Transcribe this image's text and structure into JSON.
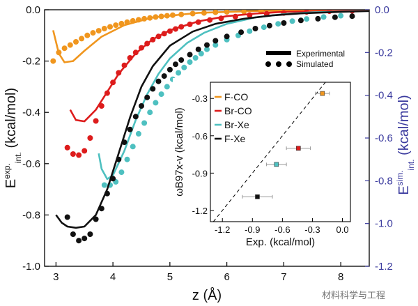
{
  "chart_data": [
    {
      "type": "line",
      "xlabel": "z (Å)",
      "ylabel_left": {
        "main": "E",
        "sup": "exp.",
        "sub": "int.",
        "unit": " (kcal/mol)"
      },
      "ylabel_right": {
        "main": "E",
        "sup": "sim.",
        "sub": "int.",
        "unit": " (kcal/mol)"
      },
      "xlim": [
        2.8,
        8.5
      ],
      "ylim_left": [
        -1.0,
        0.0
      ],
      "ylim_right": [
        -1.2,
        0.0
      ],
      "x_ticks": [
        "3",
        "4",
        "5",
        "6",
        "7",
        "8"
      ],
      "y_ticks_left": [
        "-1.0",
        "-0.8",
        "-0.6",
        "-0.4",
        "-0.2",
        "0.0"
      ],
      "y_ticks_right": [
        "-1.2",
        "-1.0",
        "-0.8",
        "-0.6",
        "-0.4",
        "-0.2",
        "0.0"
      ],
      "legend": {
        "line_label": "Experimental",
        "dots_label": "Simulated",
        "position": "top-right"
      },
      "series": [
        {
          "name": "F-CO",
          "color": "#f0961e",
          "experimental": {
            "x": [
              2.95,
              3.05,
              3.15,
              3.3,
              3.5,
              3.8,
              4.2,
              4.7,
              5.5,
              6.5,
              7.5,
              8.5
            ],
            "y": [
              -0.08,
              -0.17,
              -0.205,
              -0.2,
              -0.16,
              -0.105,
              -0.06,
              -0.03,
              -0.012,
              -0.005,
              -0.002,
              -0.001
            ]
          },
          "simulated": {
            "x": [
              2.95,
              3.05,
              3.15,
              3.25,
              3.35,
              3.45,
              3.55,
              3.65,
              3.75,
              3.85,
              3.95,
              4.05,
              4.15,
              4.25,
              4.35,
              4.45,
              4.55,
              4.65,
              4.75,
              4.85,
              4.95,
              5.05,
              5.2,
              5.4,
              5.6,
              5.8,
              6.0,
              6.3,
              6.6,
              7.0,
              7.4,
              7.8,
              8.2
            ],
            "y": [
              -0.24,
              -0.2,
              -0.18,
              -0.165,
              -0.15,
              -0.135,
              -0.12,
              -0.108,
              -0.098,
              -0.088,
              -0.08,
              -0.072,
              -0.065,
              -0.058,
              -0.052,
              -0.047,
              -0.042,
              -0.038,
              -0.034,
              -0.031,
              -0.028,
              -0.025,
              -0.022,
              -0.018,
              -0.015,
              -0.012,
              -0.01,
              -0.008,
              -0.006,
              -0.005,
              -0.004,
              -0.003,
              -0.002
            ]
          }
        },
        {
          "name": "Br-CO",
          "color": "#dd1c1c",
          "experimental": {
            "x": [
              3.25,
              3.35,
              3.5,
              3.7,
              3.9,
              4.1,
              4.4,
              4.7,
              5.0,
              5.5,
              6.0,
              6.5,
              7.0,
              8.5
            ],
            "y": [
              -0.39,
              -0.43,
              -0.435,
              -0.39,
              -0.32,
              -0.25,
              -0.17,
              -0.115,
              -0.08,
              -0.045,
              -0.025,
              -0.015,
              -0.008,
              -0.002
            ]
          },
          "simulated": {
            "x": [
              3.2,
              3.3,
              3.4,
              3.5,
              3.6,
              3.7,
              3.8,
              3.9,
              4.0,
              4.1,
              4.2,
              4.3,
              4.4,
              4.5,
              4.6,
              4.7,
              4.8,
              4.9,
              5.0,
              5.1,
              5.2,
              5.35,
              5.5,
              5.7,
              5.9,
              6.15,
              6.4,
              6.7,
              7.0,
              7.4,
              7.8,
              8.2
            ],
            "y": [
              -0.645,
              -0.675,
              -0.68,
              -0.66,
              -0.6,
              -0.52,
              -0.45,
              -0.39,
              -0.34,
              -0.295,
              -0.26,
              -0.225,
              -0.2,
              -0.178,
              -0.158,
              -0.14,
              -0.125,
              -0.112,
              -0.1,
              -0.09,
              -0.08,
              -0.068,
              -0.058,
              -0.048,
              -0.04,
              -0.032,
              -0.025,
              -0.019,
              -0.015,
              -0.01,
              -0.007,
              -0.005
            ]
          }
        },
        {
          "name": "Br-Xe",
          "color": "#4ec0c0",
          "experimental": {
            "x": [
              3.75,
              3.8,
              3.9,
              4.0,
              4.2,
              4.4,
              4.6,
              4.8,
              5.0,
              5.3,
              5.6,
              6.0,
              6.5,
              7.0,
              7.5,
              8.5
            ],
            "y": [
              -0.56,
              -0.62,
              -0.66,
              -0.645,
              -0.55,
              -0.43,
              -0.33,
              -0.25,
              -0.19,
              -0.13,
              -0.09,
              -0.055,
              -0.03,
              -0.017,
              -0.01,
              -0.004
            ]
          },
          "simulated": {
            "x": [
              3.85,
              3.95,
              4.05,
              4.15,
              4.25,
              4.35,
              4.45,
              4.55,
              4.65,
              4.75,
              4.85,
              4.95,
              5.05,
              5.15,
              5.25,
              5.35,
              5.45,
              5.55,
              5.65,
              5.8,
              6.0,
              6.2,
              6.4,
              6.65,
              6.9,
              7.15,
              7.4,
              7.7,
              8.0
            ],
            "y": [
              -0.82,
              -0.82,
              -0.805,
              -0.76,
              -0.7,
              -0.64,
              -0.58,
              -0.53,
              -0.48,
              -0.435,
              -0.395,
              -0.36,
              -0.325,
              -0.295,
              -0.27,
              -0.245,
              -0.225,
              -0.205,
              -0.185,
              -0.165,
              -0.14,
              -0.12,
              -0.1,
              -0.082,
              -0.066,
              -0.053,
              -0.043,
              -0.034,
              -0.028
            ]
          }
        },
        {
          "name": "F-Xe",
          "color": "#111111",
          "experimental": {
            "x": [
              3.0,
              3.1,
              3.2,
              3.35,
              3.5,
              3.7,
              3.9,
              4.1,
              4.3,
              4.5,
              4.7,
              5.0,
              5.4,
              5.8,
              6.3,
              6.8,
              7.3,
              8.0,
              8.5
            ],
            "y": [
              -0.8,
              -0.83,
              -0.845,
              -0.85,
              -0.845,
              -0.8,
              -0.7,
              -0.56,
              -0.42,
              -0.3,
              -0.22,
              -0.14,
              -0.085,
              -0.055,
              -0.035,
              -0.022,
              -0.014,
              -0.008,
              -0.005
            ]
          },
          "simulated": {
            "x": [
              3.2,
              3.3,
              3.4,
              3.5,
              3.6,
              3.7,
              3.8,
              3.9,
              4.0,
              4.1,
              4.2,
              4.3,
              4.4,
              4.5,
              4.6,
              4.7,
              4.8,
              4.9,
              5.0,
              5.1,
              5.2,
              5.35,
              5.5,
              5.65,
              5.8,
              6.0,
              6.25,
              6.5,
              6.75,
              7.0,
              7.3,
              7.6,
              7.9,
              8.2
            ],
            "y": [
              -0.97,
              -1.05,
              -1.08,
              -1.07,
              -1.05,
              -0.98,
              -0.93,
              -0.86,
              -0.79,
              -0.7,
              -0.62,
              -0.56,
              -0.5,
              -0.45,
              -0.41,
              -0.37,
              -0.335,
              -0.31,
              -0.28,
              -0.255,
              -0.235,
              -0.21,
              -0.185,
              -0.165,
              -0.145,
              -0.125,
              -0.105,
              -0.088,
              -0.074,
              -0.062,
              -0.05,
              -0.042,
              -0.035,
              -0.03
            ]
          }
        }
      ]
    },
    {
      "type": "scatter",
      "xlabel": "Exp. (kcal/mol)",
      "ylabel": "ωB97x-v (kcal/mol)",
      "xlim": [
        -1.32,
        0.08
      ],
      "ylim": [
        -1.29,
        -0.17
      ],
      "x_ticks": [
        "-1.2",
        "-0.9",
        "-0.6",
        "-0.3",
        "0.0"
      ],
      "y_ticks": [
        "-1.2",
        "-0.9",
        "-0.6",
        "-0.3"
      ],
      "legend_position": "top-left",
      "diagonal": "y = x (dashed)",
      "points": [
        {
          "name": "F-CO",
          "color": "#f0961e",
          "x": -0.2,
          "y": -0.26,
          "xerr": 0.07
        },
        {
          "name": "Br-CO",
          "color": "#dd1c1c",
          "x": -0.44,
          "y": -0.7,
          "xerr": 0.12
        },
        {
          "name": "Br-Xe",
          "color": "#4ec0c0",
          "x": -0.66,
          "y": -0.83,
          "xerr": 0.1
        },
        {
          "name": "F-Xe",
          "color": "#111111",
          "x": -0.85,
          "y": -1.09,
          "xerr": 0.15
        }
      ]
    }
  ],
  "watermark": "材料科学与工程"
}
